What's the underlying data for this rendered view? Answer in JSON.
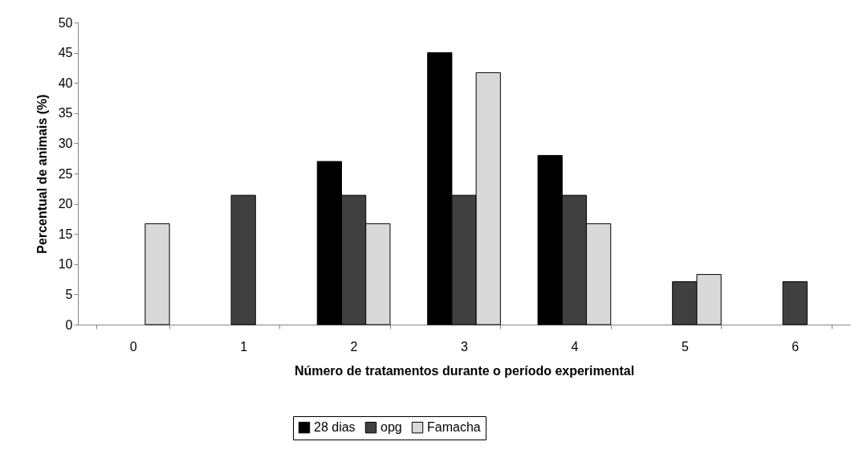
{
  "chart_data": {
    "type": "bar",
    "xlabel": "Número de tratamentos durante o período experimental",
    "ylabel": "Percentual de animais (%)",
    "categories": [
      "0",
      "1",
      "2",
      "3",
      "4",
      "5",
      "6"
    ],
    "series": [
      {
        "name": "28 dias",
        "color": "#000000",
        "values": [
          null,
          null,
          27,
          45,
          28,
          null,
          null
        ]
      },
      {
        "name": "opg",
        "color": "#404040",
        "values": [
          null,
          21.4,
          21.4,
          21.4,
          21.4,
          7.1,
          7.1
        ]
      },
      {
        "name": "Famacha",
        "color": "#d9d9d9",
        "values": [
          16.7,
          null,
          16.7,
          41.7,
          16.7,
          8.3,
          null
        ]
      }
    ],
    "ylim": [
      0,
      50
    ],
    "yticks": [
      0,
      5,
      10,
      15,
      20,
      25,
      30,
      35,
      40,
      45,
      50
    ],
    "grid": false,
    "legend": "bottom"
  }
}
